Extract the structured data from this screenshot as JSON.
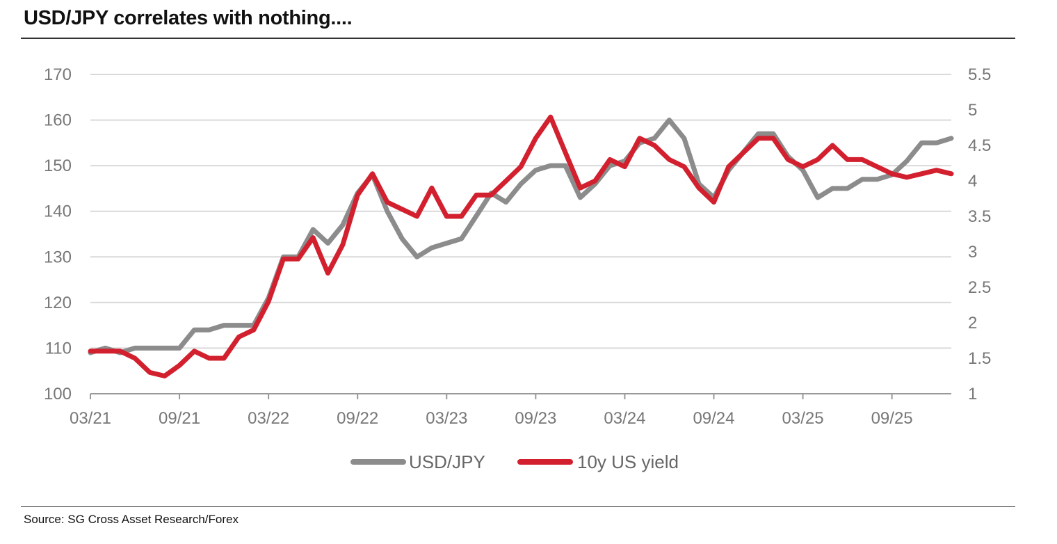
{
  "title": "USD/JPY correlates with nothing....",
  "source": "Source: SG Cross Asset Research/Forex",
  "colors": {
    "usdjpy": "#8c8c8c",
    "yield": "#d3202f",
    "grid": "#d9d9d9",
    "axis": "#999999"
  },
  "chart_data": {
    "type": "line",
    "title": "USD/JPY correlates with nothing....",
    "x_tick_labels": [
      "03/21",
      "09/21",
      "03/22",
      "09/22",
      "03/23",
      "09/23",
      "03/24",
      "09/24",
      "03/25",
      "09/25"
    ],
    "x_range": [
      "2021-03",
      "2026-01"
    ],
    "y_left": {
      "range": [
        100,
        170
      ],
      "ticks": [
        "100",
        "110",
        "120",
        "130",
        "140",
        "150",
        "160",
        "170"
      ]
    },
    "y_right": {
      "range": [
        1,
        5.5
      ],
      "ticks": [
        "1",
        "1.5",
        "2",
        "2.5",
        "3",
        "3.5",
        "4",
        "4.5",
        "5",
        "5.5"
      ]
    },
    "grid": true,
    "legend_position": "bottom",
    "series": [
      {
        "name": "USD/JPY",
        "axis": "left",
        "x": [
          "2021-03",
          "2021-04",
          "2021-05",
          "2021-06",
          "2021-07",
          "2021-08",
          "2021-09",
          "2021-10",
          "2021-11",
          "2021-12",
          "2022-01",
          "2022-02",
          "2022-03",
          "2022-04",
          "2022-05",
          "2022-06",
          "2022-07",
          "2022-08",
          "2022-09",
          "2022-10",
          "2022-11",
          "2022-12",
          "2023-01",
          "2023-02",
          "2023-03",
          "2023-04",
          "2023-05",
          "2023-06",
          "2023-07",
          "2023-08",
          "2023-09",
          "2023-10",
          "2023-11",
          "2023-12",
          "2024-01",
          "2024-02",
          "2024-03",
          "2024-04",
          "2024-05",
          "2024-06",
          "2024-07",
          "2024-08",
          "2024-09",
          "2024-10",
          "2024-11",
          "2024-12",
          "2025-01",
          "2025-02",
          "2025-03",
          "2025-04",
          "2025-05",
          "2025-06",
          "2025-07",
          "2025-08",
          "2025-09",
          "2025-10",
          "2025-11",
          "2025-12",
          "2026-01"
        ],
        "values": [
          109,
          110,
          109,
          110,
          110,
          110,
          110,
          114,
          114,
          115,
          115,
          115,
          121,
          130,
          130,
          136,
          133,
          137,
          144,
          148,
          140,
          134,
          130,
          132,
          133,
          134,
          139,
          144,
          142,
          146,
          149,
          150,
          150,
          143,
          146,
          150,
          151,
          155,
          156,
          160,
          156,
          146,
          143,
          149,
          153,
          157,
          157,
          152,
          149,
          143,
          145,
          145,
          147,
          147,
          148,
          151,
          155,
          155,
          156
        ]
      },
      {
        "name": "10y US yield",
        "axis": "right",
        "x": [
          "2021-03",
          "2021-04",
          "2021-05",
          "2021-06",
          "2021-07",
          "2021-08",
          "2021-09",
          "2021-10",
          "2021-11",
          "2021-12",
          "2022-01",
          "2022-02",
          "2022-03",
          "2022-04",
          "2022-05",
          "2022-06",
          "2022-07",
          "2022-08",
          "2022-09",
          "2022-10",
          "2022-11",
          "2022-12",
          "2023-01",
          "2023-02",
          "2023-03",
          "2023-04",
          "2023-05",
          "2023-06",
          "2023-07",
          "2023-08",
          "2023-09",
          "2023-10",
          "2023-11",
          "2023-12",
          "2024-01",
          "2024-02",
          "2024-03",
          "2024-04",
          "2024-05",
          "2024-06",
          "2024-07",
          "2024-08",
          "2024-09",
          "2024-10",
          "2024-11",
          "2024-12",
          "2025-01",
          "2025-02",
          "2025-03",
          "2025-04",
          "2025-05",
          "2025-06",
          "2025-07",
          "2025-08",
          "2025-09",
          "2025-10",
          "2025-11",
          "2025-12",
          "2026-01"
        ],
        "values": [
          1.6,
          1.6,
          1.6,
          1.5,
          1.3,
          1.25,
          1.4,
          1.6,
          1.5,
          1.5,
          1.8,
          1.9,
          2.3,
          2.9,
          2.9,
          3.2,
          2.7,
          3.1,
          3.8,
          4.1,
          3.7,
          3.6,
          3.5,
          3.9,
          3.5,
          3.5,
          3.8,
          3.8,
          4.0,
          4.2,
          4.6,
          4.9,
          4.4,
          3.9,
          4.0,
          4.3,
          4.2,
          4.6,
          4.5,
          4.3,
          4.2,
          3.9,
          3.7,
          4.2,
          4.4,
          4.6,
          4.6,
          4.3,
          4.2,
          4.3,
          4.5,
          4.3,
          4.3,
          4.2,
          4.1,
          4.05,
          4.1,
          4.15,
          4.1
        ]
      }
    ]
  }
}
